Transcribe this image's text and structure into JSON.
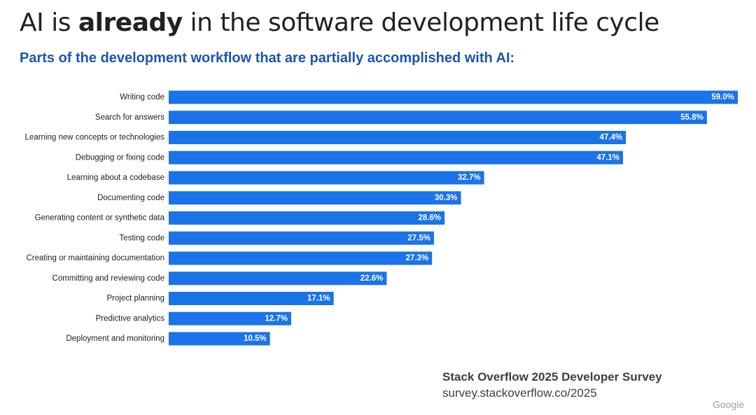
{
  "header": {
    "title_prefix": "AI is ",
    "title_bold": "already",
    "title_suffix": " in the software development life cycle",
    "subtitle": "Parts of the development workflow that are partially accomplished with AI:"
  },
  "chart_data": {
    "type": "bar",
    "orientation": "horizontal",
    "title": "Parts of the development workflow that are partially accomplished with AI:",
    "categories": [
      "Writing code",
      "Search for answers",
      "Learning new concepts or technologies",
      "Debugging or fixing code",
      "Learning about a codebase",
      "Documenting code",
      "Generating content or synthetic data",
      "Testing code",
      "Creating or maintaining documentation",
      "Committing and reviewing code",
      "Project planning",
      "Predictive analytics",
      "Deployment and monitoring"
    ],
    "values": [
      59.0,
      55.8,
      47.4,
      47.1,
      32.7,
      30.3,
      28.6,
      27.5,
      27.3,
      22.6,
      17.1,
      12.7,
      10.5
    ],
    "value_labels": [
      "59.0%",
      "55.8%",
      "47.4%",
      "47.1%",
      "32.7%",
      "30.3%",
      "28.6%",
      "27.5%",
      "27.3%",
      "22.6%",
      "17.1%",
      "12.7%",
      "10.5%"
    ],
    "xlim": [
      0,
      59
    ],
    "bar_color": "#1a73e8",
    "grid": false
  },
  "footer": {
    "source": "Stack Overflow 2025 Developer Survey",
    "url": "survey.stackoverflow.co/2025",
    "watermark": "Google"
  }
}
